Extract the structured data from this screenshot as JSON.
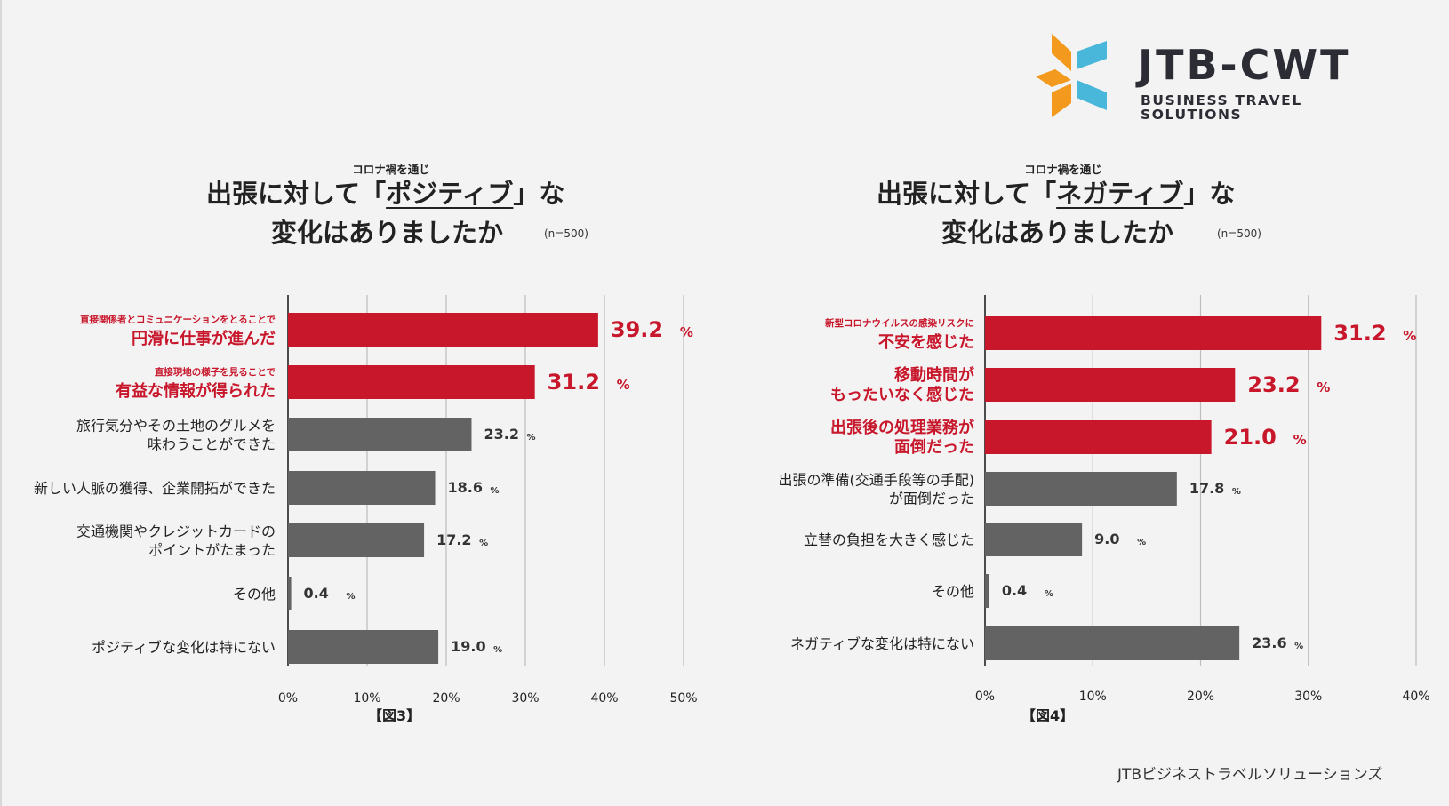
{
  "brand": {
    "name": "JTB-CWT",
    "tagline": "BUSINESS TRAVEL SOLUTIONS",
    "colors": {
      "orange": "#f39a1e",
      "blue": "#49b7d9",
      "dark": "#2c2c35"
    }
  },
  "credit": "JTBビジネストラベルソリューションズ",
  "colors": {
    "highlight": "#c8162b",
    "default": "#636363",
    "grid": "#bdbdbd",
    "axis": "#222222"
  },
  "charts": [
    {
      "kicker": "コロナ禍を通じ",
      "title_pre": "出張に対して「",
      "title_emph": "ポジティブ",
      "title_post": "」な",
      "title_line2": "変化はありましたか",
      "n_label": "(n=500)",
      "figure_label": "【図3】"
    },
    {
      "kicker": "コロナ禍を通じ",
      "title_pre": "出張に対して「",
      "title_emph": "ネガティブ",
      "title_post": "」な",
      "title_line2": "変化はありましたか",
      "n_label": "(n=500)",
      "figure_label": "【図4】"
    }
  ],
  "chart_data": [
    {
      "type": "bar",
      "orientation": "horizontal",
      "title": "コロナ禍を通じ 出張に対して「ポジティブ」な変化はありましたか",
      "n": "(n=500)",
      "unit": "%",
      "xlim": [
        0,
        50
      ],
      "ticks": [
        0,
        10,
        20,
        30,
        40,
        50
      ],
      "tick_labels": [
        "0%",
        "10%",
        "20%",
        "30%",
        "40%",
        "50%"
      ],
      "grid": true,
      "categories": [
        {
          "sub": "直接関係者とコミュニケーションをとることで",
          "lines": [
            "円滑に仕事が進んだ"
          ],
          "value": 39.2,
          "value_label": "39.2",
          "highlight": true
        },
        {
          "sub": "直接現地の様子を見ることで",
          "lines": [
            "有益な情報が得られた"
          ],
          "value": 31.2,
          "value_label": "31.2",
          "highlight": true
        },
        {
          "sub": "",
          "lines": [
            "旅行気分やその土地のグルメを",
            "味わうことができた"
          ],
          "value": 23.2,
          "value_label": "23.2",
          "highlight": false
        },
        {
          "sub": "",
          "lines": [
            "新しい人脈の獲得、企業開拓ができた"
          ],
          "value": 18.6,
          "value_label": "18.6",
          "highlight": false
        },
        {
          "sub": "",
          "lines": [
            "交通機関やクレジットカードの",
            "ポイントがたまった"
          ],
          "value": 17.2,
          "value_label": "17.2",
          "highlight": false
        },
        {
          "sub": "",
          "lines": [
            "その他"
          ],
          "value": 0.4,
          "value_label": "0.4",
          "highlight": false
        },
        {
          "sub": "",
          "lines": [
            "ポジティブな変化は特にない"
          ],
          "value": 19.0,
          "value_label": "19.0",
          "highlight": false
        }
      ]
    },
    {
      "type": "bar",
      "orientation": "horizontal",
      "title": "コロナ禍を通じ 出張に対して「ネガティブ」な変化はありましたか",
      "n": "(n=500)",
      "unit": "%",
      "xlim": [
        0,
        40
      ],
      "ticks": [
        0,
        10,
        20,
        30,
        40
      ],
      "tick_labels": [
        "0%",
        "10%",
        "20%",
        "30%",
        "40%"
      ],
      "grid": true,
      "categories": [
        {
          "sub": "新型コロナウイルスの感染リスクに",
          "lines": [
            "不安を感じた"
          ],
          "value": 31.2,
          "value_label": "31.2",
          "highlight": true
        },
        {
          "sub": "",
          "lines": [
            "移動時間が",
            "もったいなく感じた"
          ],
          "value": 23.2,
          "value_label": "23.2",
          "highlight": true
        },
        {
          "sub": "",
          "lines": [
            "出張後の処理業務が",
            "面倒だった"
          ],
          "value": 21.0,
          "value_label": "21.0",
          "highlight": true
        },
        {
          "sub": "",
          "lines": [
            "出張の準備(交通手段等の手配)",
            "が面倒だった"
          ],
          "value": 17.8,
          "value_label": "17.8",
          "highlight": false
        },
        {
          "sub": "",
          "lines": [
            "立替の負担を大きく感じた"
          ],
          "value": 9.0,
          "value_label": "9.0",
          "highlight": false
        },
        {
          "sub": "",
          "lines": [
            "その他"
          ],
          "value": 0.4,
          "value_label": "0.4",
          "highlight": false
        },
        {
          "sub": "",
          "lines": [
            "ネガティブな変化は特にない"
          ],
          "value": 23.6,
          "value_label": "23.6",
          "highlight": false
        }
      ]
    }
  ]
}
